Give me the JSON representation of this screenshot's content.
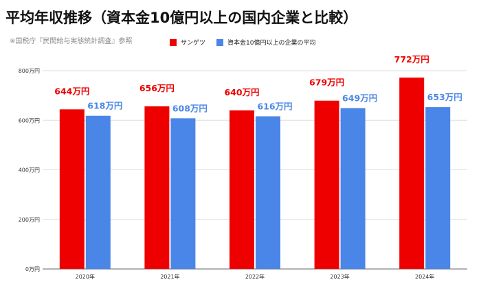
{
  "title": "平均年収推移（資本金10億円以上の国内企業と比較）",
  "source_note": "※国税庁『民間給与実態統計調査』参照",
  "colors": {
    "series1": "#ee0000",
    "series2": "#4a86e8",
    "grid": "#dddddd"
  },
  "chart_data": {
    "type": "bar",
    "categories": [
      "2020年",
      "2021年",
      "2022年",
      "2023年",
      "2024年"
    ],
    "series": [
      {
        "name": "サンゲツ",
        "values": [
          644,
          656,
          640,
          679,
          772
        ],
        "labels": [
          "644万円",
          "656万円",
          "640万円",
          "679万円",
          "772万円"
        ]
      },
      {
        "name": "資本金10億円以上の企業の平均",
        "values": [
          618,
          608,
          616,
          649,
          653
        ],
        "labels": [
          "618万円",
          "608万円",
          "616万円",
          "649万円",
          "653万円"
        ]
      }
    ],
    "yticks": [
      0,
      200,
      400,
      600,
      800
    ],
    "ytick_labels": [
      "0万円",
      "200万円",
      "400万円",
      "600万円",
      "800万円"
    ],
    "ylim": [
      0,
      800
    ],
    "legend_position": "top",
    "grid": true
  }
}
